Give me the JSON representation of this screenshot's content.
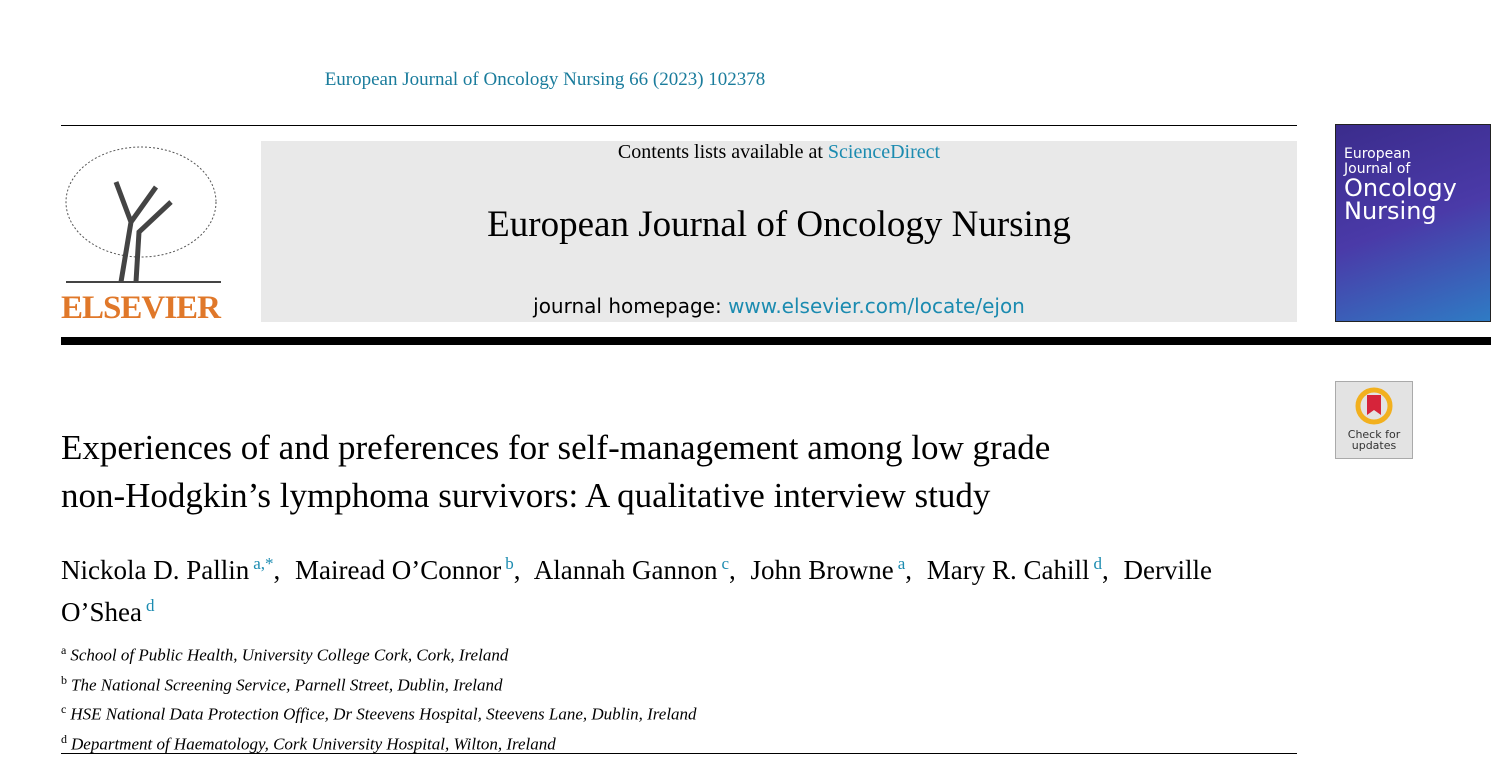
{
  "header": {
    "citation": "European Journal of Oncology Nursing 66 (2023) 102378",
    "publisher": "ELSEVIER",
    "contents_prefix": "Contents lists available at",
    "contents_link": "ScienceDirect",
    "journal": "European Journal of Oncology Nursing",
    "homepage_prefix": "journal homepage:",
    "homepage_link": "www.elsevier.com/locate/ejon",
    "cover": {
      "line1": "European",
      "line2": "Journal of",
      "line3": "Oncology",
      "line4": "Nursing"
    },
    "badge": {
      "line1": "Check for",
      "line2": "updates"
    }
  },
  "article": {
    "title_lines": [
      "Experiences of and preferences for self-management among low grade",
      "non-Hodgkin’s lymphoma survivors: A qualitative interview study"
    ],
    "authors": [
      {
        "name": "Nickola D. Pallin",
        "sup": "a,*",
        "sep": ","
      },
      {
        "name": "Mairead O’Connor",
        "sup": "b",
        "sep": ","
      },
      {
        "name": "Alannah Gannon",
        "sup": "c",
        "sep": ","
      },
      {
        "name": "John Browne",
        "sup": "a",
        "sep": ","
      },
      {
        "name": "Mary R. Cahill",
        "sup": "d",
        "sep": ","
      },
      {
        "name": "Derville O’Shea",
        "sup": "d"
      }
    ],
    "affiliations": [
      {
        "key": "a",
        "text": "School of Public Health, University College Cork, Cork, Ireland"
      },
      {
        "key": "b",
        "text": "The National Screening Service, Parnell Street, Dublin, Ireland"
      },
      {
        "key": "c",
        "text": "HSE National Data Protection Office, Dr Steevens Hospital, Steevens Lane, Dublin, Ireland"
      },
      {
        "key": "d",
        "text": "Department of Haematology, Cork University Hospital, Wilton, Ireland"
      }
    ]
  }
}
